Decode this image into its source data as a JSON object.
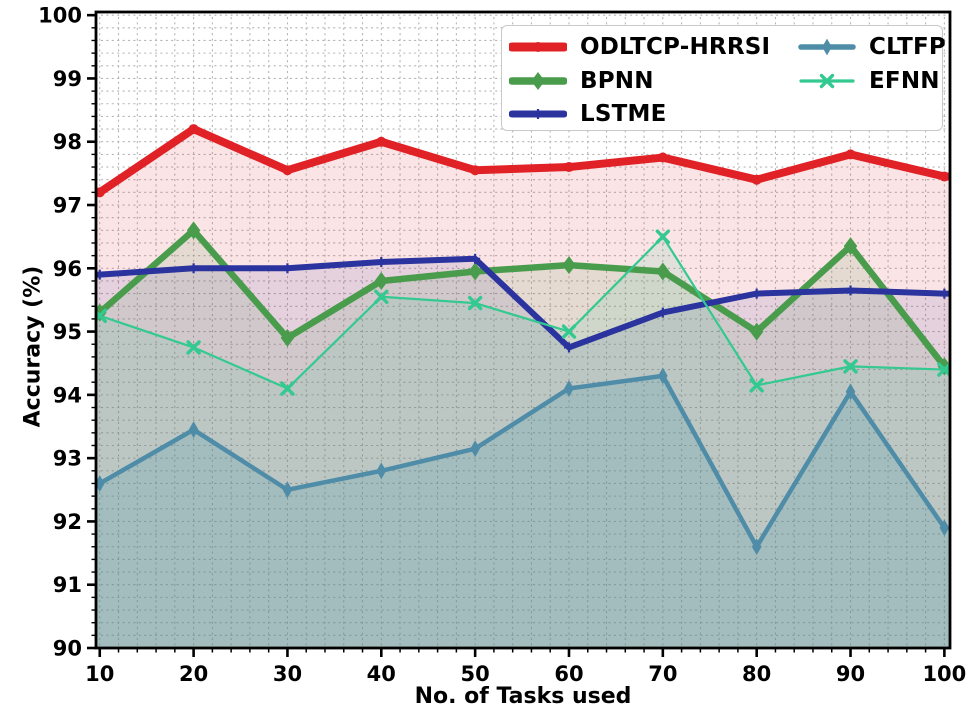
{
  "figure": {
    "background": "#ffffff",
    "spine_color": "#000000",
    "grid_color": "#a8a8a8",
    "tick_label_color": "#000000"
  },
  "chart_data": {
    "type": "line",
    "title": "",
    "xlabel": "No. of Tasks used",
    "ylabel": "Accuracy (%)",
    "xlim": [
      10,
      100
    ],
    "ylim": [
      90,
      100
    ],
    "x_ticks": [
      10,
      20,
      30,
      40,
      50,
      60,
      70,
      80,
      90,
      100
    ],
    "y_ticks": [
      90,
      91,
      92,
      93,
      94,
      95,
      96,
      97,
      98,
      99,
      100
    ],
    "x_minor_step": 2,
    "y_minor_step": 0.2,
    "grid": "dotted minor grid, both axes, drawn under data",
    "legend_position": "upper center, two columns, white box",
    "x": [
      10,
      20,
      30,
      40,
      50,
      60,
      70,
      80,
      90,
      100
    ],
    "series": [
      {
        "name": "ODLTCP-HRRSI",
        "color": "#e02126",
        "marker": "circle",
        "line_width": 8,
        "marker_size": 5,
        "fill_alpha": 0.12,
        "values": [
          97.2,
          98.2,
          97.55,
          98.0,
          97.55,
          97.6,
          97.75,
          97.4,
          97.8,
          97.45
        ]
      },
      {
        "name": "BPNN",
        "color": "#4a9c4d",
        "marker": "diamond",
        "line_width": 6.5,
        "marker_size": 7.5,
        "fill_alpha": 0.13,
        "values": [
          95.3,
          96.6,
          94.9,
          95.8,
          95.95,
          96.05,
          95.95,
          95.0,
          96.35,
          94.45
        ]
      },
      {
        "name": "LSTME",
        "color": "#2b339e",
        "marker": "plus",
        "line_width": 6,
        "marker_size": 5,
        "fill_alpha": 0.1,
        "values": [
          95.9,
          96.0,
          96.0,
          96.1,
          96.15,
          94.75,
          95.3,
          95.6,
          95.65,
          95.6
        ]
      },
      {
        "name": "CLTFP",
        "color": "#4e8ca8",
        "marker": "diamond-thin",
        "line_width": 4.5,
        "marker_size": 8,
        "fill_alpha": 0.22,
        "values": [
          92.6,
          93.45,
          92.5,
          92.8,
          93.15,
          94.1,
          94.3,
          91.6,
          94.05,
          91.9
        ]
      },
      {
        "name": "EFNN",
        "color": "#33c990",
        "marker": "x",
        "line_width": 2.2,
        "marker_size": 5.5,
        "fill_alpha": 0.12,
        "values": [
          95.25,
          94.75,
          94.1,
          95.55,
          95.45,
          95.0,
          96.5,
          94.15,
          94.45,
          94.4
        ]
      }
    ]
  }
}
